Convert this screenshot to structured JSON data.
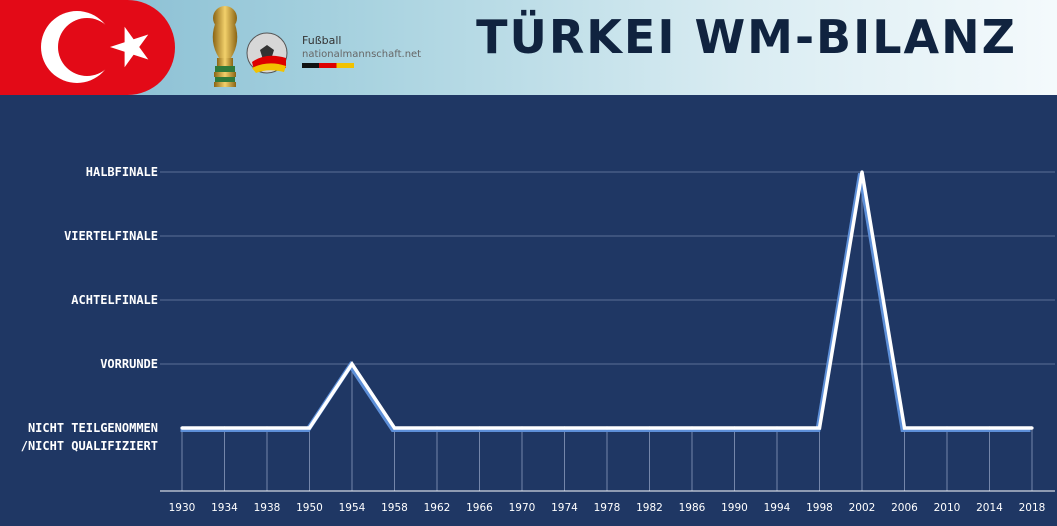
{
  "header": {
    "title": "TÜRKEI WM-BILANZ",
    "logo_title": "Fußball",
    "logo_subtitle": "nationalmannschaft.net"
  },
  "colors": {
    "background": "#1f3764",
    "line": "#ffffff",
    "flag_red": "#e30a17"
  },
  "icons": [
    "turkey-flag-icon",
    "world-cup-trophy-icon",
    "football-logo-icon"
  ],
  "chart_data": {
    "type": "line",
    "title": "TÜRKEI WM-BILANZ",
    "xlabel": "",
    "ylabel": "",
    "grid": true,
    "categories": [
      "1930",
      "1934",
      "1938",
      "1950",
      "1954",
      "1958",
      "1962",
      "1966",
      "1970",
      "1974",
      "1978",
      "1982",
      "1986",
      "1990",
      "1994",
      "1998",
      "2002",
      "2006",
      "2010",
      "2014",
      "2018"
    ],
    "y_levels": [
      [
        "NICHT TEILGENOMMEN",
        "/NICHT QUALIFIZIERT"
      ],
      [
        "VORRUNDE"
      ],
      [
        "ACHTELFINALE"
      ],
      [
        "VIERTELFINALE"
      ],
      [
        "HALBFINALE"
      ]
    ],
    "series": [
      {
        "values": [
          0,
          0,
          0,
          0,
          1,
          0,
          0,
          0,
          0,
          0,
          0,
          0,
          0,
          0,
          0,
          0,
          4,
          0,
          0,
          0,
          0
        ]
      }
    ]
  }
}
